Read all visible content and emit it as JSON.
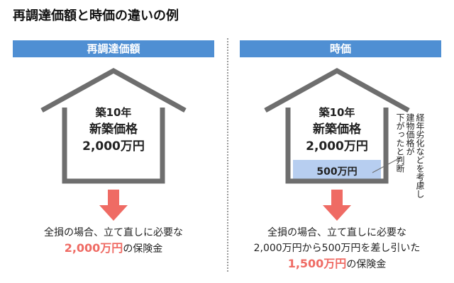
{
  "title": "再調達価額と時価の違いの例",
  "left": {
    "header": "再調達価額",
    "house": {
      "age": "築10年",
      "price_label": "新築価格",
      "price_value": "2,000万円"
    },
    "description": {
      "line1": "全損の場合、立て直しに必要な",
      "amount": "2,000万円",
      "suffix": "の保険金"
    }
  },
  "right": {
    "header": "時価",
    "house": {
      "age": "築10年",
      "price_label": "新築価格",
      "price_value": "2,000万円",
      "deduction": "500万円"
    },
    "note": {
      "line1": "経年劣化などを考慮し",
      "line2": "建物価格が",
      "line3": "下がったと判断"
    },
    "description": {
      "line1": "全損の場合、立て直しに必要な",
      "line2": "2,000万円から500万円を差し引いた",
      "amount": "1,500万円",
      "suffix": "の保険金"
    }
  },
  "colors": {
    "header_bg": "#4f8fd3",
    "house_outline": "#6e6e6e",
    "arrow": "#ef6b64",
    "deduction_fill": "#b7cef0",
    "highlight_text": "#ef6b64"
  }
}
